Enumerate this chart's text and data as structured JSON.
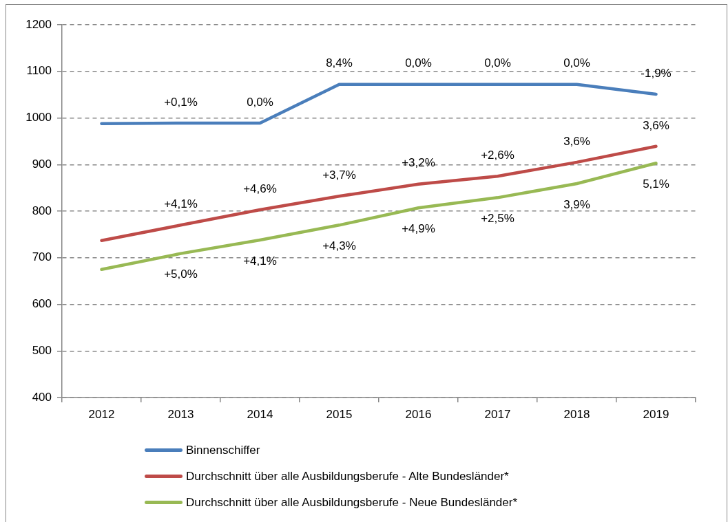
{
  "chart_data": {
    "type": "line",
    "categories": [
      "2012",
      "2013",
      "2014",
      "2015",
      "2016",
      "2017",
      "2018",
      "2019"
    ],
    "series": [
      {
        "name": "Binnenschiffer",
        "color": "#4a7ebb",
        "values": [
          988,
          989,
          989,
          1072,
          1072,
          1072,
          1072,
          1051
        ]
      },
      {
        "name": "Durchschnitt über alle Ausbildungsberufe - Alte Bundesländer*",
        "color": "#be4b48",
        "values": [
          737,
          770,
          803,
          832,
          858,
          875,
          905,
          939
        ]
      },
      {
        "name": "Durchschnitt über alle Ausbildungsberufe - Neue Bundesländer*",
        "color": "#98b954",
        "values": [
          675,
          709,
          738,
          770,
          807,
          829,
          859,
          903
        ]
      }
    ],
    "annotations": [
      {
        "text": "+0,1%",
        "x": "2013",
        "y": 989
      },
      {
        "text": "0,0%",
        "x": "2014",
        "y": 989
      },
      {
        "text": "8,4%",
        "x": "2015",
        "y": 1072
      },
      {
        "text": "0,0%",
        "x": "2016",
        "y": 1072
      },
      {
        "text": "0,0%",
        "x": "2017",
        "y": 1072
      },
      {
        "text": "0,0%",
        "x": "2018",
        "y": 1072
      },
      {
        "text": "-1,9%",
        "x": "2019",
        "y": 1051
      },
      {
        "text": "+4,1%",
        "x": "2013",
        "y": 770
      },
      {
        "text": "+4,6%",
        "x": "2014",
        "y": 803
      },
      {
        "text": "+3,7%",
        "x": "2015",
        "y": 832
      },
      {
        "text": "+3,2%",
        "x": "2016",
        "y": 858
      },
      {
        "text": "+2,6%",
        "x": "2017",
        "y": 875
      },
      {
        "text": "3,6%",
        "x": "2018",
        "y": 905
      },
      {
        "text": "3,6%",
        "x": "2019",
        "y": 939
      },
      {
        "text": "+5,0%",
        "x": "2013",
        "y": 709
      },
      {
        "text": "+4,1%",
        "x": "2014",
        "y": 738
      },
      {
        "text": "+4,3%",
        "x": "2015",
        "y": 770
      },
      {
        "text": "+4,9%",
        "x": "2016",
        "y": 807
      },
      {
        "text": "+2,5%",
        "x": "2017",
        "y": 829
      },
      {
        "text": "3,9%",
        "x": "2018",
        "y": 859
      },
      {
        "text": "5,1%",
        "x": "2019",
        "y": 903
      }
    ],
    "ylim": [
      400,
      1200
    ],
    "yticks": [
      400,
      500,
      600,
      700,
      800,
      900,
      1000,
      1100,
      1200
    ],
    "grid": "y",
    "legend": "bottom",
    "marker": "none",
    "line_style": "solid"
  }
}
